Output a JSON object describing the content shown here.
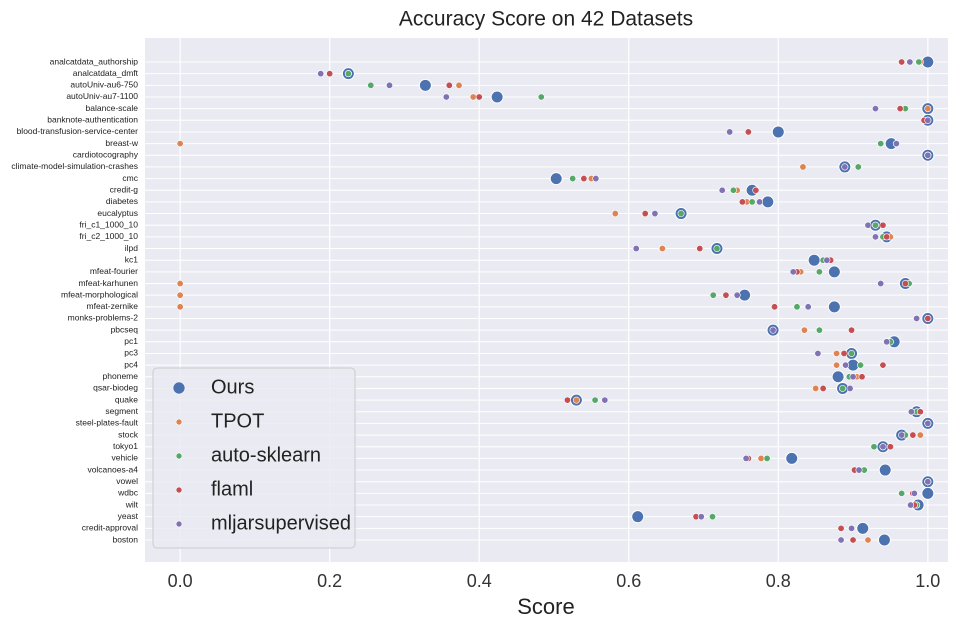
{
  "chart_data": {
    "type": "strip",
    "title": "Accuracy Score on 42 Datasets",
    "x_label": "Score",
    "categories": [
      "analcatdata_authorship",
      "analcatdata_dmft",
      "autoUniv-au6-750",
      "autoUniv-au7-1100",
      "balance-scale",
      "banknote-authentication",
      "blood-transfusion-service-center",
      "breast-w",
      "cardiotocography",
      "climate-model-simulation-crashes",
      "cmc",
      "credit-g",
      "diabetes",
      "eucalyptus",
      "fri_c1_1000_10",
      "fri_c2_1000_10",
      "ilpd",
      "kc1",
      "mfeat-fourier",
      "mfeat-karhunen",
      "mfeat-morphological",
      "mfeat-zernike",
      "monks-problems-2",
      "pbcseq",
      "pc1",
      "pc3",
      "pc4",
      "phoneme",
      "qsar-biodeg",
      "quake",
      "segment",
      "steel-plates-fault",
      "stock",
      "tokyo1",
      "vehicle",
      "volcanoes-a4",
      "vowel",
      "wdbc",
      "wilt",
      "yeast",
      "credit-approval",
      "boston"
    ],
    "series": [
      {
        "name": "Ours",
        "color": "#4c72b0",
        "values": [
          1.0,
          0.225,
          0.328,
          0.424,
          1.0,
          1.0,
          0.8,
          0.951,
          1.0,
          0.889,
          0.503,
          0.765,
          0.786,
          0.67,
          0.93,
          0.945,
          0.718,
          0.848,
          0.875,
          0.97,
          0.755,
          0.875,
          1.0,
          0.793,
          0.955,
          0.898,
          0.9,
          0.88,
          0.886,
          0.53,
          0.985,
          1.0,
          0.965,
          0.94,
          0.818,
          0.943,
          1.0,
          1.0,
          0.987,
          0.612,
          0.913,
          0.942
        ]
      },
      {
        "name": "TPOT",
        "color": "#dd8452",
        "values": [
          0.99,
          0.225,
          0.373,
          0.392,
          1.0,
          1.0,
          0.76,
          0.0,
          1.0,
          0.833,
          0.55,
          0.745,
          0.758,
          0.582,
          0.93,
          0.95,
          0.645,
          0.862,
          0.83,
          0.0,
          0.0,
          0.0,
          1.0,
          0.835,
          0.95,
          0.878,
          0.878,
          0.905,
          0.85,
          0.53,
          0.99,
          1.0,
          0.99,
          0.94,
          0.777,
          0.908,
          1.0,
          0.98,
          0.985,
          0.697,
          0.898,
          0.92
        ]
      },
      {
        "name": "auto-sklearn",
        "color": "#55a868",
        "values": [
          0.988,
          0.225,
          0.255,
          0.483,
          0.97,
          1.0,
          0.76,
          0.937,
          1.0,
          0.907,
          0.525,
          0.74,
          0.765,
          0.67,
          0.93,
          0.94,
          0.718,
          0.86,
          0.855,
          0.975,
          0.713,
          0.825,
          1.0,
          0.855,
          0.95,
          0.898,
          0.91,
          0.895,
          0.886,
          0.555,
          0.985,
          1.0,
          0.97,
          0.928,
          0.785,
          0.915,
          1.0,
          0.965,
          0.985,
          0.712,
          0.898,
          0.9
        ]
      },
      {
        "name": "flaml",
        "color": "#c44e52",
        "values": [
          0.965,
          0.2,
          0.36,
          0.4,
          0.963,
          0.995,
          0.76,
          0.958,
          1.0,
          0.889,
          0.54,
          0.77,
          0.752,
          0.622,
          0.94,
          0.945,
          0.695,
          0.87,
          0.825,
          0.97,
          0.73,
          0.795,
          1.0,
          0.898,
          0.945,
          0.888,
          0.94,
          0.912,
          0.86,
          0.518,
          0.99,
          1.0,
          0.98,
          0.95,
          0.76,
          0.902,
          1.0,
          0.98,
          0.982,
          0.69,
          0.884,
          0.9
        ]
      },
      {
        "name": "mljarsupervised",
        "color": "#8172b3",
        "values": [
          0.976,
          0.188,
          0.28,
          0.356,
          0.93,
          1.0,
          0.735,
          0.958,
          1.0,
          0.889,
          0.556,
          0.725,
          0.775,
          0.635,
          0.92,
          0.93,
          0.61,
          0.865,
          0.82,
          0.937,
          0.745,
          0.84,
          0.985,
          0.793,
          0.945,
          0.853,
          0.89,
          0.9,
          0.896,
          0.568,
          0.978,
          1.0,
          0.965,
          0.94,
          0.757,
          0.908,
          1.0,
          0.982,
          0.977,
          0.697,
          0.898,
          0.884
        ]
      }
    ],
    "xlim": [
      -0.047,
      1.027
    ],
    "xticks": [
      {
        "value": 0,
        "label": "0.0"
      },
      0.2,
      0.4,
      0.6,
      0.8,
      {
        "value": 1,
        "label": "1.0"
      }
    ],
    "grid": true,
    "legend": "lower left"
  }
}
